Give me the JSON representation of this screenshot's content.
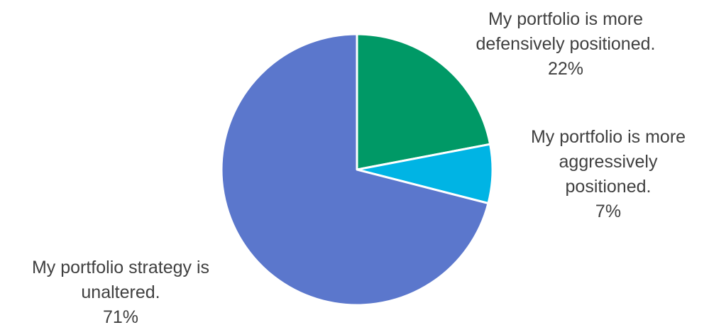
{
  "chart_data": {
    "type": "pie",
    "title": "",
    "start_angle_deg": 0,
    "direction": "clockwise",
    "slices": [
      {
        "label_lines": [
          "My portfolio is more",
          "defensively positioned."
        ],
        "value": 22,
        "value_label": "22%",
        "color": "#009966"
      },
      {
        "label_lines": [
          "My portfolio is more",
          "aggressively",
          "positioned."
        ],
        "value": 7,
        "value_label": "7%",
        "color": "#00B4E4"
      },
      {
        "label_lines": [
          "My portfolio strategy is",
          "unaltered."
        ],
        "value": 71,
        "value_label": "71%",
        "color": "#5B77CC"
      }
    ],
    "legend": "none",
    "label_color": "#404040",
    "slice_border_color": "#FFFFFF"
  }
}
